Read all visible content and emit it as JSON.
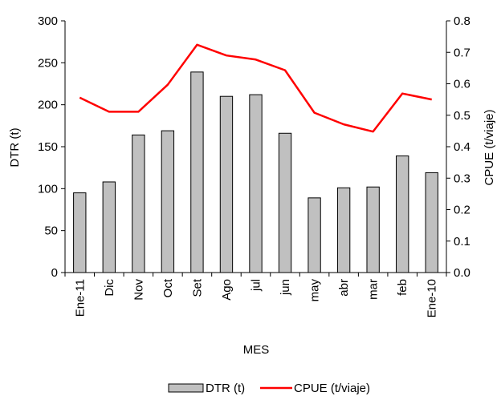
{
  "chart_data": {
    "type": "bar",
    "categories": [
      "Ene-11",
      "Dic",
      "Nov",
      "Oct",
      "Set",
      "Ago",
      "jul",
      "jun",
      "may",
      "abr",
      "mar",
      "feb",
      "Ene-10"
    ],
    "series": [
      {
        "name": "DTR (t)",
        "type": "bar",
        "axis": "left",
        "color": "#c0c0c0",
        "values": [
          95,
          108,
          164,
          169,
          239,
          210,
          212,
          166,
          89,
          101,
          102,
          139,
          119
        ]
      },
      {
        "name": "CPUE (t/viaje)",
        "type": "line",
        "axis": "right",
        "color": "#ff0000",
        "values": [
          0.556,
          0.511,
          0.511,
          0.597,
          0.724,
          0.69,
          0.677,
          0.643,
          0.508,
          0.471,
          0.448,
          0.569,
          0.55
        ]
      }
    ],
    "title": "",
    "xlabel": "MES",
    "ylabel": "DTR (t)",
    "y2label": "CPUE (t/viaje)",
    "ylim": [
      0,
      300
    ],
    "y2lim": [
      0,
      0.8
    ],
    "yticks": [
      "0",
      "50",
      "100",
      "150",
      "200",
      "250",
      "300"
    ],
    "y2ticks": [
      "0.0",
      "0.1",
      "0.2",
      "0.3",
      "0.4",
      "0.5",
      "0.6",
      "0.7",
      "0.8"
    ],
    "grid": false,
    "legend": "bottom"
  }
}
